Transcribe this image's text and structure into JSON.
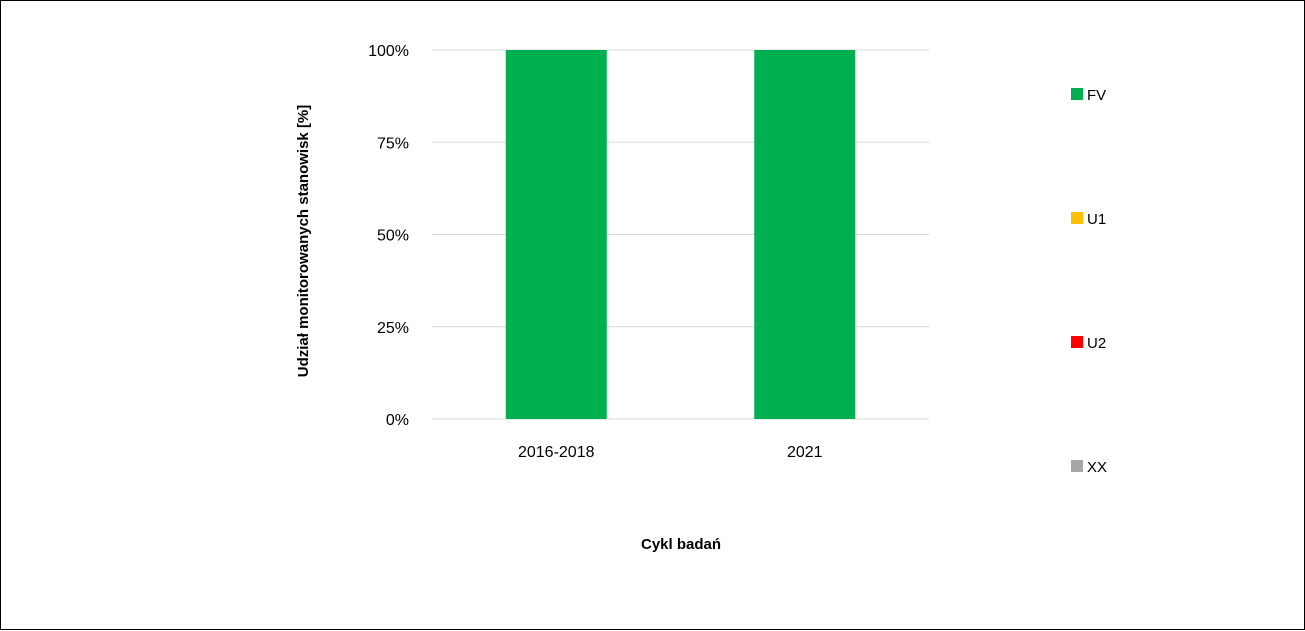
{
  "chart_data": {
    "type": "bar",
    "stacked": true,
    "categories": [
      "2016-2018",
      "2021"
    ],
    "series": [
      {
        "name": "FV",
        "values": [
          100,
          100
        ],
        "color": "#00b050"
      },
      {
        "name": "U1",
        "values": [
          0,
          0
        ],
        "color": "#ffc000"
      },
      {
        "name": "U2",
        "values": [
          0,
          0
        ],
        "color": "#ff0000"
      },
      {
        "name": "XX",
        "values": [
          0,
          0
        ],
        "color": "#a6a6a6"
      }
    ],
    "title": "",
    "xlabel": "Cykl badań",
    "ylabel": "Udział monitorowanych stanowisk [%]",
    "ylim": [
      0,
      100
    ],
    "yticks": [
      0,
      25,
      50,
      75,
      100
    ],
    "ytick_labels": [
      "0%",
      "25%",
      "50%",
      "75%",
      "100%"
    ],
    "grid": true,
    "gridline_color": "#d9d9d9",
    "legend_position": "right"
  }
}
